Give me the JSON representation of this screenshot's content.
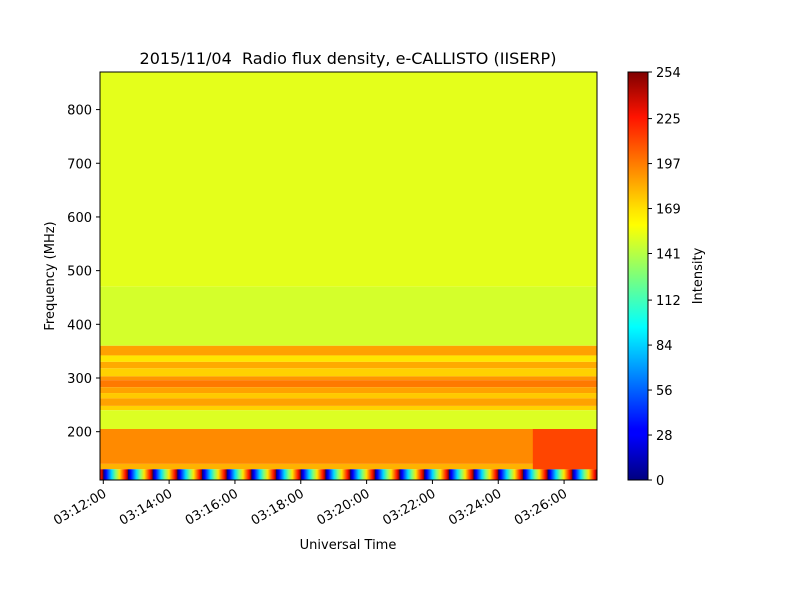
{
  "chart_data": {
    "type": "heatmap",
    "title": "2015/11/04  Radio flux density, e-CALLISTO (IISERP)",
    "xlabel": "Universal Time",
    "ylabel": "Frequency (MHz)",
    "colorbar_label": "Intensity",
    "colormap": "jet",
    "x_range_minutes": [
      -0.1,
      15.0
    ],
    "xlim": [
      "03:11:54",
      "03:27:00"
    ],
    "x_tick_labels": [
      "03:12:00",
      "03:14:00",
      "03:16:00",
      "03:18:00",
      "03:20:00",
      "03:22:00",
      "03:24:00",
      "03:26:00"
    ],
    "x_tick_minutes": [
      0,
      2,
      4,
      6,
      8,
      10,
      12,
      14
    ],
    "ylim": [
      110,
      870
    ],
    "y_ticks": [
      200,
      300,
      400,
      500,
      600,
      700,
      800
    ],
    "clim": [
      0,
      254
    ],
    "colorbar_ticks": [
      0,
      28,
      56,
      84,
      112,
      141,
      169,
      197,
      225,
      254
    ],
    "bands": [
      {
        "fmin": 470,
        "fmax": 870,
        "value": 152
      },
      {
        "fmin": 360,
        "fmax": 470,
        "value": 148
      },
      {
        "fmin": 342,
        "fmax": 360,
        "value": 182
      },
      {
        "fmin": 330,
        "fmax": 342,
        "value": 165
      },
      {
        "fmin": 318,
        "fmax": 330,
        "value": 180
      },
      {
        "fmin": 303,
        "fmax": 318,
        "value": 170
      },
      {
        "fmin": 296,
        "fmax": 303,
        "value": 185
      },
      {
        "fmin": 283,
        "fmax": 296,
        "value": 192
      },
      {
        "fmin": 272,
        "fmax": 283,
        "value": 182
      },
      {
        "fmin": 262,
        "fmax": 272,
        "value": 172
      },
      {
        "fmin": 248,
        "fmax": 262,
        "value": 182
      },
      {
        "fmin": 240,
        "fmax": 248,
        "value": 170
      },
      {
        "fmin": 205,
        "fmax": 240,
        "value": 150
      },
      {
        "fmin": 140,
        "fmax": 205,
        "value": 188
      },
      {
        "fmin": 130,
        "fmax": 140,
        "value": 178
      }
    ],
    "calibration_band": {
      "fmin": 110,
      "fmax": 130,
      "period_minutes": 0.75
    },
    "burst_event": {
      "tstart_minutes": 13.05,
      "tend_minutes": 15.0,
      "fmin": 130,
      "fmax": 205,
      "value": 205
    }
  }
}
